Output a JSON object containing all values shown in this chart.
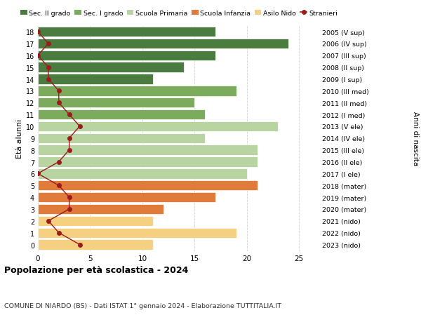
{
  "ages": [
    18,
    17,
    16,
    15,
    14,
    13,
    12,
    11,
    10,
    9,
    8,
    7,
    6,
    5,
    4,
    3,
    2,
    1,
    0
  ],
  "right_labels": [
    "2005 (V sup)",
    "2006 (IV sup)",
    "2007 (III sup)",
    "2008 (II sup)",
    "2009 (I sup)",
    "2010 (III med)",
    "2011 (II med)",
    "2012 (I med)",
    "2013 (V ele)",
    "2014 (IV ele)",
    "2015 (III ele)",
    "2016 (II ele)",
    "2017 (I ele)",
    "2018 (mater)",
    "2019 (mater)",
    "2020 (mater)",
    "2021 (nido)",
    "2022 (nido)",
    "2023 (nido)"
  ],
  "bar_values": [
    17,
    24,
    17,
    14,
    11,
    19,
    15,
    16,
    23,
    16,
    21,
    21,
    20,
    21,
    17,
    12,
    11,
    19,
    11
  ],
  "bar_colors": [
    "#4a7c3f",
    "#4a7c3f",
    "#4a7c3f",
    "#4a7c3f",
    "#4a7c3f",
    "#7dab5e",
    "#7dab5e",
    "#7dab5e",
    "#b8d4a0",
    "#b8d4a0",
    "#b8d4a0",
    "#b8d4a0",
    "#b8d4a0",
    "#e07b39",
    "#e07b39",
    "#e07b39",
    "#f5d080",
    "#f5d080",
    "#f5d080"
  ],
  "stranieri_values": [
    0,
    1,
    0,
    1,
    1,
    2,
    2,
    3,
    4,
    3,
    3,
    2,
    0,
    2,
    3,
    3,
    1,
    2,
    4
  ],
  "stranieri_color": "#9b1c1c",
  "legend_items": [
    {
      "label": "Sec. II grado",
      "color": "#4a7c3f"
    },
    {
      "label": "Sec. I grado",
      "color": "#7dab5e"
    },
    {
      "label": "Scuola Primaria",
      "color": "#b8d4a0"
    },
    {
      "label": "Scuola Infanzia",
      "color": "#e07b39"
    },
    {
      "label": "Asilo Nido",
      "color": "#f5d080"
    },
    {
      "label": "Stranieri",
      "color": "#9b1c1c"
    }
  ],
  "ylabel_left": "Età alunni",
  "ylabel_right": "Anni di nascita",
  "title": "Popolazione per età scolastica - 2024",
  "subtitle": "COMUNE DI NIARDO (BS) - Dati ISTAT 1° gennaio 2024 - Elaborazione TUTTITALIA.IT",
  "xlim": [
    0,
    27
  ],
  "background_color": "#ffffff",
  "grid_color": "#cccccc"
}
